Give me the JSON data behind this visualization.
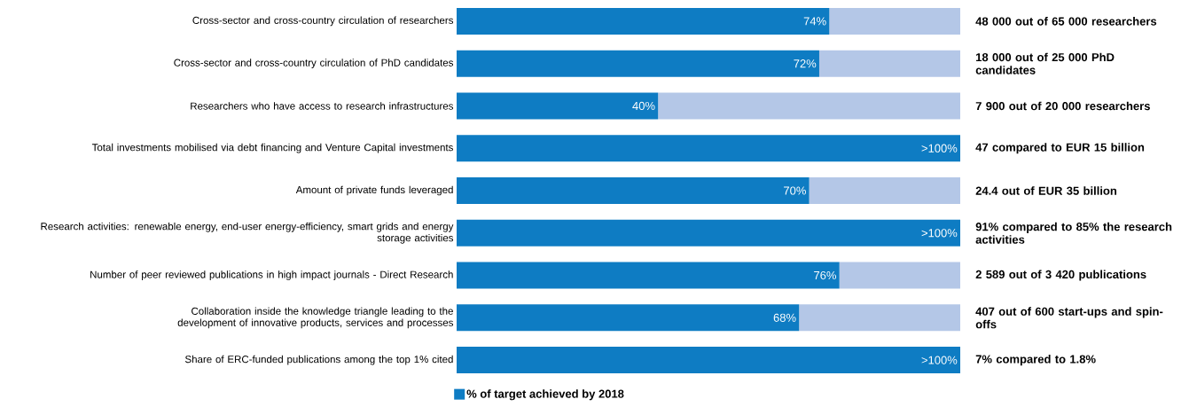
{
  "chart_data": {
    "type": "bar",
    "orientation": "horizontal",
    "stacked": true,
    "legend": "bottom left",
    "categories": [
      "Cross-sector and cross-country circulation of researchers",
      "Cross-sector and cross-country circulation of  PhD candidates",
      "Researchers who have access to research infrastructures",
      "Total investments mobilised via debt financing and Venture Capital investments",
      "Amount of private funds leveraged",
      "Research activities: renewable energy, end-user energy-efficiency, smart grids and energy storage activities",
      "Number of peer reviewed publications in high impact journals - Direct Research",
      "Collaboration inside the knowledge triangle leading to the development of innovative products, services and processes",
      "Share of ERC-funded publications among the top 1% cited"
    ],
    "series": [
      {
        "name": "% of target achieved by 2018",
        "color": "#0e7cc3",
        "values": [
          74,
          72,
          40,
          100,
          70,
          100,
          76,
          68,
          100
        ],
        "value_labels": [
          "74%",
          "72%",
          "40%",
          ">100%",
          "70%",
          ">100%",
          "76%",
          "68%",
          ">100%"
        ]
      },
      {
        "color": "#b4c7e7",
        "values": [
          26,
          28,
          60,
          0,
          30,
          0,
          24,
          32,
          0
        ]
      }
    ],
    "annotations": [
      "48 000 out of 65 000 researchers",
      "18 000 out of 25 000 PhD candidates",
      "7 900 out of 20 000 researchers",
      "47 compared to EUR 15 billion",
      "24.4 out of EUR 35 billion",
      "91% compared to 85% the research activities",
      "2 589 out of 3 420 publications",
      "407 out of 600 start-ups and spin-offs",
      "7% compared to 1.8%"
    ]
  }
}
